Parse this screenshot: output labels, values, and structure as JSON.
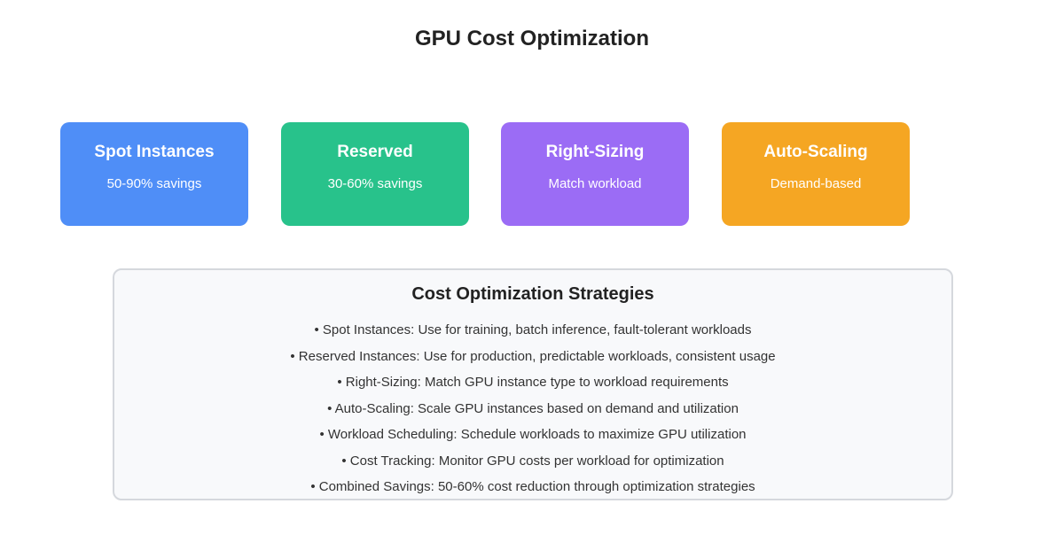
{
  "title": "GPU Cost Optimization",
  "cards": [
    {
      "label": "Spot Instances",
      "detail": "50-90% savings",
      "color": "#4f8ef7"
    },
    {
      "label": "Reserved",
      "detail": "30-60% savings",
      "color": "#28c28b"
    },
    {
      "label": "Right-Sizing",
      "detail": "Match workload",
      "color": "#9b6cf5"
    },
    {
      "label": "Auto-Scaling",
      "detail": "Demand-based",
      "color": "#f5a623"
    }
  ],
  "strategies": {
    "heading": "Cost Optimization Strategies",
    "items": [
      "• Spot Instances: Use for training, batch inference, fault-tolerant workloads",
      "• Reserved Instances: Use for production, predictable workloads, consistent usage",
      "• Right-Sizing: Match GPU instance type to workload requirements",
      "• Auto-Scaling: Scale GPU instances based on demand and utilization",
      "• Workload Scheduling: Schedule workloads to maximize GPU utilization",
      "• Cost Tracking: Monitor GPU costs per workload for optimization",
      "• Combined Savings: 50-60% cost reduction through optimization strategies"
    ]
  }
}
